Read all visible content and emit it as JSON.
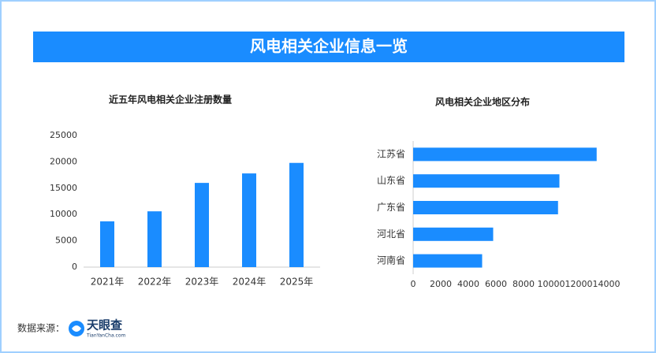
{
  "header": {
    "title": "风电相关企业信息一览"
  },
  "chart_data": [
    {
      "type": "bar",
      "title": "近五年风电相关企业注册数量",
      "categories": [
        "2021年",
        "2022年",
        "2023年",
        "2024年",
        "2025年"
      ],
      "values": [
        8700,
        10600,
        16000,
        17800,
        19800
      ],
      "color": "#1a8cff",
      "ylim": [
        0,
        25000
      ],
      "yticks": [
        0,
        5000,
        10000,
        15000,
        20000,
        25000
      ],
      "grid": false
    },
    {
      "type": "barh",
      "title": "风电相关企业地区分布",
      "categories": [
        "江苏省",
        "山东省",
        "广东省",
        "河北省",
        "河南省"
      ],
      "values": [
        13300,
        10600,
        10500,
        5800,
        5000
      ],
      "color": "#1a8cff",
      "xlim": [
        0,
        14000
      ],
      "xticks": [
        0,
        2000,
        4000,
        6000,
        8000,
        10000,
        12000,
        14000
      ],
      "grid": false
    }
  ],
  "source": {
    "label": "数据来源：",
    "brand": "天眼查",
    "domain": "TianYanCha.com"
  }
}
